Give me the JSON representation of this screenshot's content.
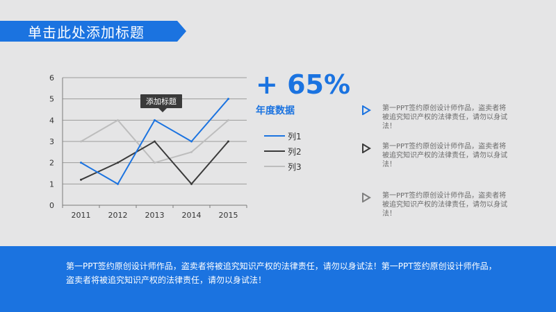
{
  "colors": {
    "accent": "#1b73e0",
    "series1": "#1b73e0",
    "series2": "#3a3a3a",
    "series3": "#bdbdbd",
    "icon_gray": "#7f7f7f"
  },
  "header": {
    "title": "单击此处添加标题"
  },
  "chart_data": {
    "type": "line",
    "categories": [
      "2011",
      "2012",
      "2013",
      "2014",
      "2015"
    ],
    "series": [
      {
        "name": "列1",
        "values": [
          2,
          1,
          4,
          3,
          5
        ]
      },
      {
        "name": "列2",
        "values": [
          1.2,
          2,
          3,
          1,
          3
        ]
      },
      {
        "name": "列3",
        "values": [
          3,
          4,
          2,
          2.5,
          4
        ]
      }
    ],
    "ylim": [
      0,
      6
    ],
    "yticks": [
      "0",
      "1",
      "2",
      "3",
      "4",
      "5",
      "6"
    ],
    "grid": true,
    "legend": "right",
    "annotation": "添加标题"
  },
  "stat": {
    "value": "+ 65%",
    "label": "年度数据"
  },
  "bullets": [
    {
      "icon": "play-outline-icon-blue",
      "text": "第一PPT签约原创设计师作品，盗卖者将被追究知识产权的法律责任，请勿以身试法！"
    },
    {
      "icon": "play-outline-icon-dark",
      "text": "第一PPT签约原创设计师作品，盗卖者将被追究知识产权的法律责任，请勿以身试法！"
    },
    {
      "icon": "play-outline-icon-gray",
      "text": "第一PPT签约原创设计师作品，盗卖者将被追究知识产权的法律责任，请勿以身试法！"
    }
  ],
  "footer": {
    "text": "第一PPT签约原创设计师作品，盗卖者将被追究知识产权的法律责任，请勿以身试法！第一PPT签约原创设计师作品，盗卖者将被追究知识产权的法律责任，请勿以身试法！"
  }
}
